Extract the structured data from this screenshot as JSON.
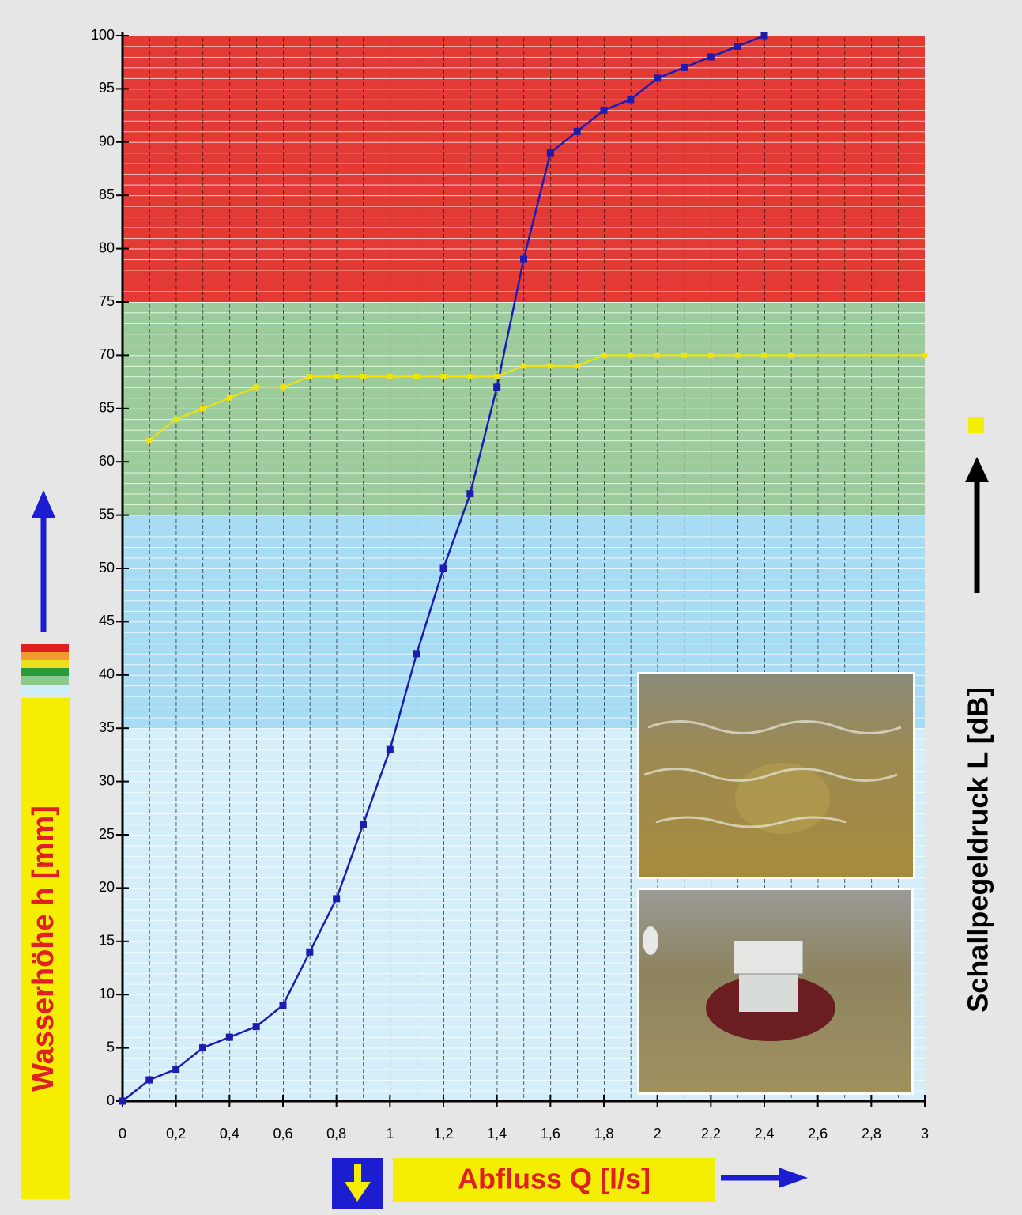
{
  "chart_data": {
    "type": "line",
    "x_label": "Abfluss Q [l/s]",
    "y_label": "Wasserhöhe h [mm]",
    "y2_label": "Schallpegeldruck L [dB]",
    "xlim": [
      0,
      3
    ],
    "ylim": [
      0,
      100
    ],
    "xticks": [
      0,
      {
        "value": 0.2,
        "label": "0,2"
      },
      {
        "value": 0.4,
        "label": "0,4"
      },
      {
        "value": 0.6,
        "label": "0,6"
      },
      {
        "value": 0.8,
        "label": "0,8"
      },
      1,
      {
        "value": 1.2,
        "label": "1,2"
      },
      {
        "value": 1.4,
        "label": "1,4"
      },
      {
        "value": 1.6,
        "label": "1,6"
      },
      {
        "value": 1.8,
        "label": "1,8"
      },
      2,
      {
        "value": 2.2,
        "label": "2,2"
      },
      {
        "value": 2.4,
        "label": "2,4"
      },
      {
        "value": 2.6,
        "label": "2,6"
      },
      {
        "value": 2.8,
        "label": "2,8"
      },
      3
    ],
    "yticks": [
      0,
      5,
      10,
      15,
      20,
      25,
      30,
      35,
      40,
      45,
      50,
      55,
      60,
      65,
      70,
      75,
      80,
      85,
      90,
      95,
      100
    ],
    "bands": [
      {
        "from": 0,
        "to": 35,
        "color": "#d4eefa"
      },
      {
        "from": 35,
        "to": 55,
        "color": "#a8dcf4"
      },
      {
        "from": 55,
        "to": 75,
        "color": "#9ccb9c"
      },
      {
        "from": 75,
        "to": 100,
        "color": "#e33a36"
      }
    ],
    "series": [
      {
        "color": "#1c1cb0",
        "x": [
          0,
          0.1,
          0.2,
          0.3,
          0.4,
          0.5,
          0.6,
          0.7,
          0.8,
          0.9,
          1,
          1.1,
          1.2,
          1.3,
          1.4,
          1.5,
          1.6,
          1.7,
          1.8,
          1.9,
          2,
          2.1,
          2.2,
          2.3,
          2.4
        ],
        "values": [
          0,
          2,
          3,
          5,
          6,
          7,
          9,
          14,
          19,
          26,
          33,
          42,
          50,
          57,
          67,
          79,
          89,
          91,
          93,
          94,
          96,
          97,
          98,
          99,
          100
        ]
      },
      {
        "color": "#f5e400",
        "x": [
          0.1,
          0.2,
          0.3,
          0.4,
          0.5,
          0.6,
          0.7,
          0.8,
          0.9,
          1,
          1.1,
          1.2,
          1.3,
          1.4,
          1.5,
          1.6,
          1.7,
          1.8,
          1.9,
          2,
          2.1,
          2.2,
          2.3,
          2.4,
          2.5,
          3
        ],
        "values": [
          62,
          64,
          65,
          66,
          67,
          67,
          68,
          68,
          68,
          68,
          68,
          68,
          68,
          68,
          69,
          69,
          69,
          70,
          70,
          70,
          70,
          70,
          70,
          70,
          70,
          70
        ]
      }
    ]
  }
}
